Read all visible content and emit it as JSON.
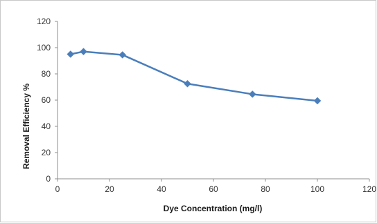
{
  "chart_data": {
    "type": "line",
    "title": "",
    "xlabel": "Dye Concentration (mg/l)",
    "ylabel": "Removal Efficiency %",
    "xlim": [
      0,
      120
    ],
    "ylim": [
      0,
      120
    ],
    "x_ticks": [
      0,
      20,
      40,
      60,
      80,
      100,
      120
    ],
    "y_ticks": [
      0,
      20,
      40,
      60,
      80,
      100,
      120
    ],
    "x_tick_labels": [
      "0",
      "20",
      "40",
      "60",
      "80",
      "100",
      "120"
    ],
    "y_tick_labels": [
      "0",
      "20",
      "40",
      "60",
      "80",
      "100",
      "120"
    ],
    "grid": false,
    "legend": "none",
    "marker": "diamond",
    "series": [
      {
        "color": "#4a7ebb",
        "x": [
          5,
          10,
          25,
          50,
          75,
          100
        ],
        "y": [
          95,
          97,
          94.5,
          72.5,
          64.5,
          59.5
        ]
      }
    ]
  }
}
